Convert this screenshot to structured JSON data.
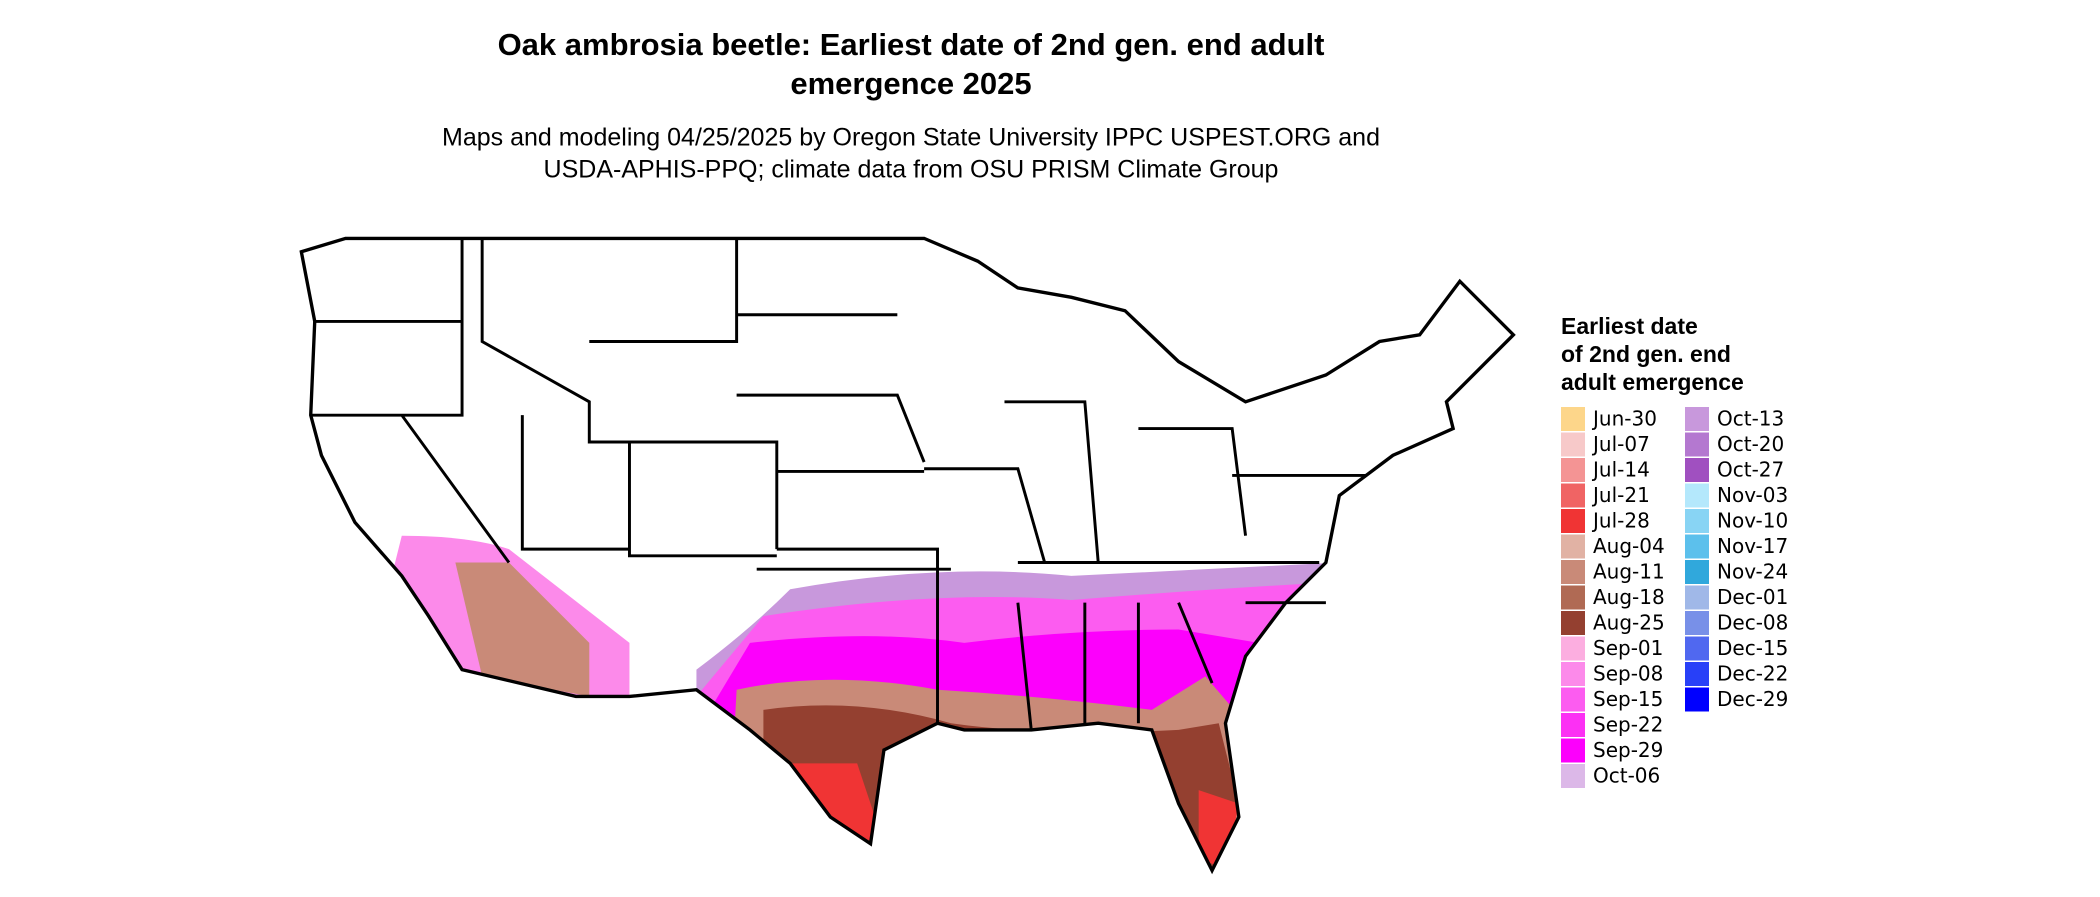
{
  "title": {
    "line1": "Oak ambrosia beetle: Earliest date of 2nd gen. end adult",
    "line2": "emergence 2025"
  },
  "subtitle": {
    "line1": "Maps and modeling 04/25/2025 by Oregon State University IPPC USPEST.ORG and",
    "line2": "USDA-APHIS-PPQ; climate data from OSU PRISM Climate Group"
  },
  "legend": {
    "title": [
      "Earliest date",
      "of 2nd gen. end",
      "adult emergence"
    ],
    "items": [
      {
        "label": "Jun-30",
        "color": "#fdd68a"
      },
      {
        "label": "Jul-07",
        "color": "#f7c9c9"
      },
      {
        "label": "Jul-14",
        "color": "#f49494"
      },
      {
        "label": "Jul-21",
        "color": "#f06464"
      },
      {
        "label": "Jul-28",
        "color": "#f03434"
      },
      {
        "label": "Aug-04",
        "color": "#e1b2a4"
      },
      {
        "label": "Aug-11",
        "color": "#c98a78"
      },
      {
        "label": "Aug-18",
        "color": "#b06a54"
      },
      {
        "label": "Aug-25",
        "color": "#944030"
      },
      {
        "label": "Sep-01",
        "color": "#fcaee0"
      },
      {
        "label": "Sep-08",
        "color": "#fc8aea"
      },
      {
        "label": "Sep-15",
        "color": "#fc5cf0"
      },
      {
        "label": "Sep-22",
        "color": "#fc30f4"
      },
      {
        "label": "Sep-29",
        "color": "#fc00fc"
      },
      {
        "label": "Oct-06",
        "color": "#dcb8e8"
      },
      {
        "label": "Oct-13",
        "color": "#c898dc"
      },
      {
        "label": "Oct-20",
        "color": "#b478d0"
      },
      {
        "label": "Oct-27",
        "color": "#a050c0"
      },
      {
        "label": "Nov-03",
        "color": "#b4e8fc"
      },
      {
        "label": "Nov-10",
        "color": "#88d4f4"
      },
      {
        "label": "Nov-17",
        "color": "#5cc0ec"
      },
      {
        "label": "Nov-24",
        "color": "#30a8dc"
      },
      {
        "label": "Dec-01",
        "color": "#a0b8e8"
      },
      {
        "label": "Dec-08",
        "color": "#7890e8"
      },
      {
        "label": "Dec-15",
        "color": "#5068f0"
      },
      {
        "label": "Dec-22",
        "color": "#2840f8"
      },
      {
        "label": "Dec-29",
        "color": "#0000ff"
      }
    ]
  }
}
